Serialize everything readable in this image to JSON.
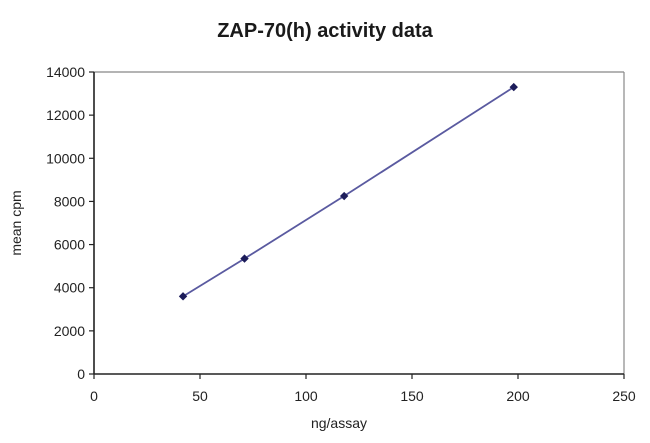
{
  "chart_data": {
    "type": "scatter",
    "title": "ZAP-70(h) activity data",
    "xlabel": "ng/assay",
    "ylabel": "mean cpm",
    "xlim": [
      0,
      250
    ],
    "ylim": [
      0,
      14000
    ],
    "xticks": [
      0,
      50,
      100,
      150,
      200,
      250
    ],
    "yticks": [
      0,
      2000,
      4000,
      6000,
      8000,
      10000,
      12000,
      14000
    ],
    "grid": false,
    "legend": null,
    "series": [
      {
        "name": "ZAP-70(h)",
        "marker": "diamond",
        "line": true,
        "x": [
          42,
          71,
          118,
          198
        ],
        "y": [
          3600,
          5350,
          8250,
          13300
        ]
      }
    ]
  },
  "colors": {
    "line": "#5a5aa0",
    "marker": "#1c1c5a",
    "axis": "#222222",
    "plot_border": "#888888"
  }
}
